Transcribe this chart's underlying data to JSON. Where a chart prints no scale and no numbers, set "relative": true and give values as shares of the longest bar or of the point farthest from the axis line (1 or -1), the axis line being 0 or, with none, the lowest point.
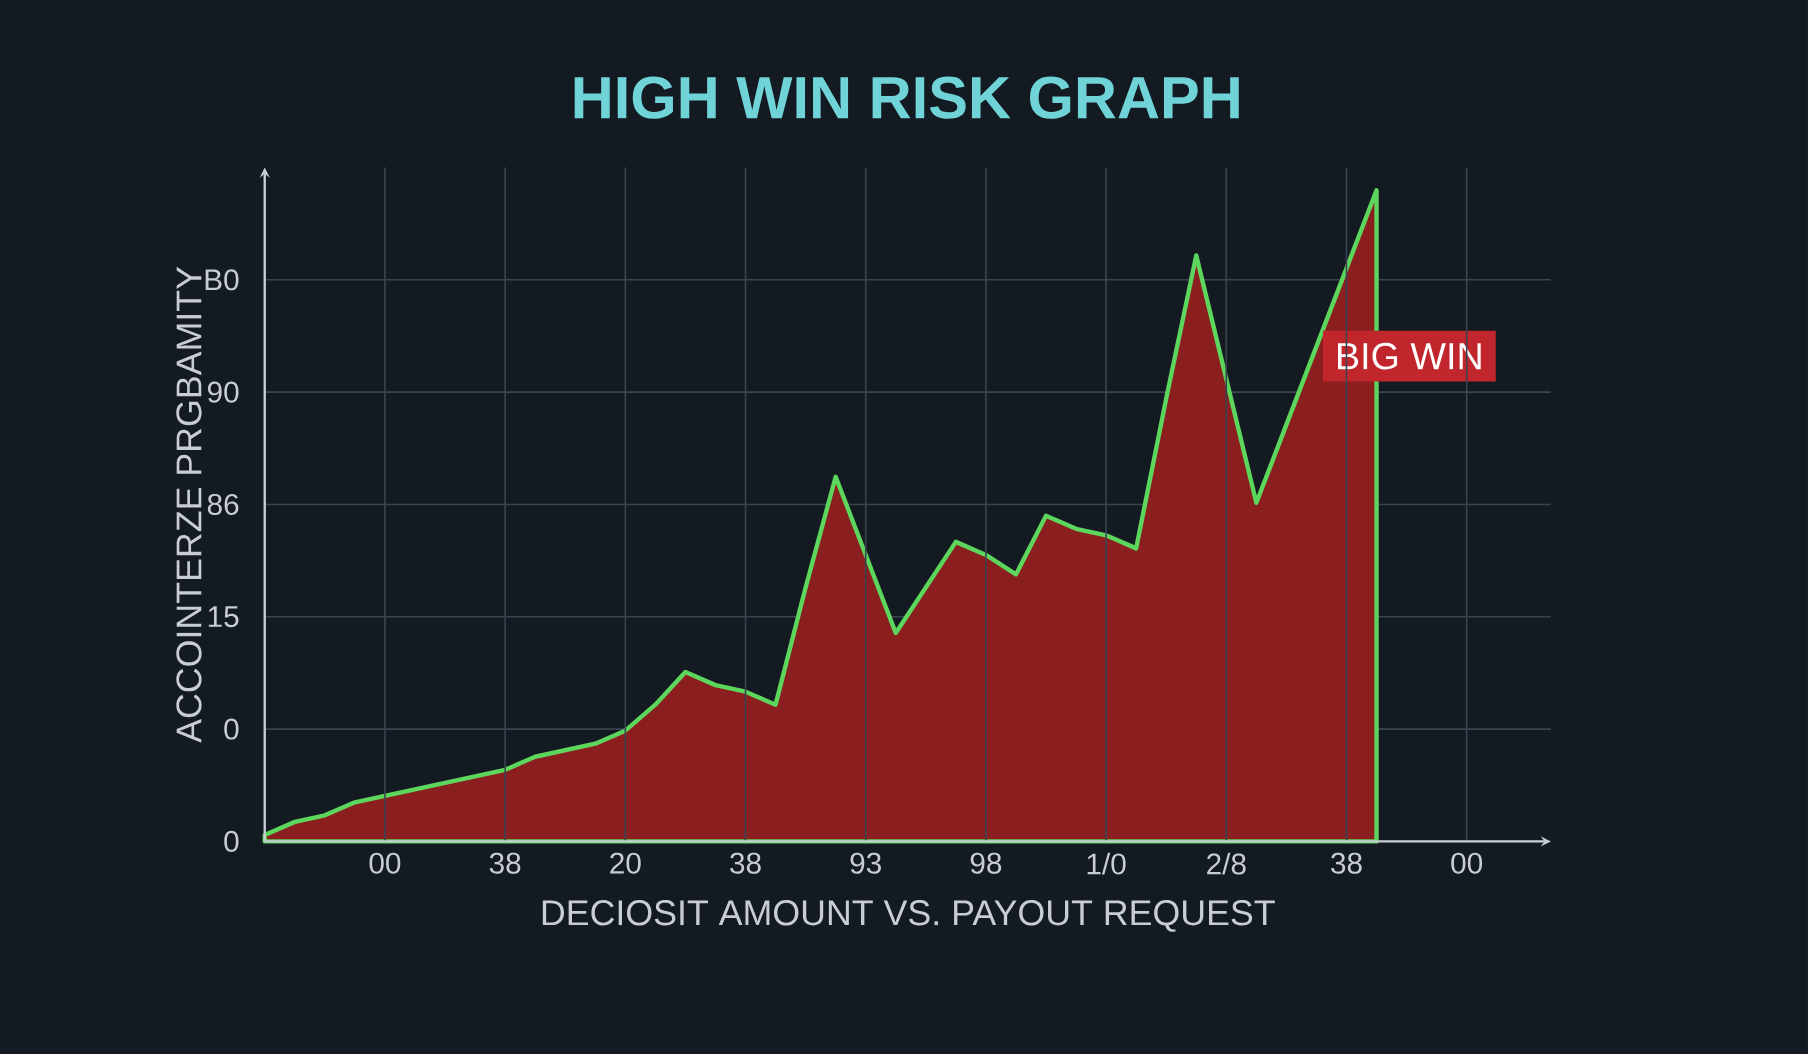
{
  "chart_data": {
    "type": "area",
    "relative": true,
    "title": "HIGH WIN RISK GRAPH",
    "xlabel": "DECIOSIT AMOUNT VS. PAYOUT REQUEST",
    "ylabel": "ACCOINTERZE PRGBAMITY",
    "annotations": [
      "BIG WIN",
      "0",
      "0",
      "15",
      "86",
      "90",
      "B0"
    ],
    "categories": [
      null,
      null,
      null,
      null,
      "00",
      null,
      null,
      null,
      "38",
      null,
      null,
      null,
      "20",
      null,
      null,
      null,
      "38",
      null,
      null,
      null,
      "93",
      null,
      null,
      null,
      "98",
      null,
      null,
      null,
      "1/0",
      null,
      null,
      null,
      "2/8",
      null,
      null,
      null,
      "38",
      null,
      null,
      null,
      "00",
      null,
      null
    ],
    "series": [
      {
        "color": "#8b1e1e",
        "values": [
          0.01,
          0.03,
          0.04,
          0.06,
          0.07,
          0.08,
          0.09,
          0.1,
          0.11,
          0.13,
          0.14,
          0.15,
          0.17,
          0.21,
          0.26,
          0.24,
          0.23,
          0.21,
          0.39,
          0.56,
          0.44,
          0.32,
          0.39,
          0.46,
          0.44,
          0.41,
          0.5,
          0.48,
          0.47,
          0.45,
          0.68,
          0.9,
          0.71,
          0.52,
          0.64,
          0.76,
          0.88,
          1.0,
          null,
          null,
          null,
          null,
          null
        ]
      }
    ],
    "grid": true
  }
}
